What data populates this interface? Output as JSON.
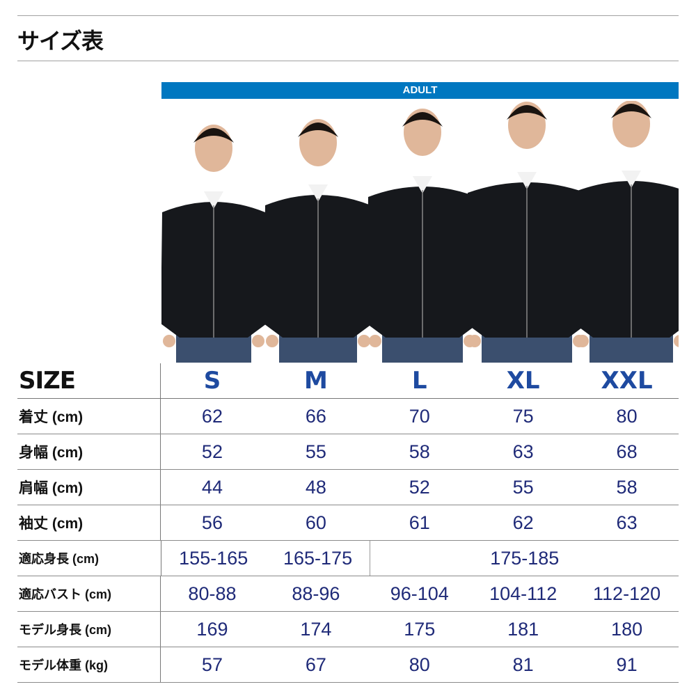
{
  "page_title": "サイズ表",
  "header_band": "ADULT",
  "colors": {
    "band": "#0077c0",
    "size_letters": "#1e4aa0",
    "values": "#1f2a78"
  },
  "size_label": "SIZE",
  "sizes": [
    "S",
    "M",
    "L",
    "XL",
    "XXL"
  ],
  "rows": [
    {
      "label": "着丈 (cm)",
      "values": [
        "62",
        "66",
        "70",
        "75",
        "80"
      ]
    },
    {
      "label": "身幅 (cm)",
      "values": [
        "52",
        "55",
        "58",
        "63",
        "68"
      ]
    },
    {
      "label": "肩幅 (cm)",
      "values": [
        "44",
        "48",
        "52",
        "55",
        "58"
      ]
    },
    {
      "label": "袖丈 (cm)",
      "values": [
        "56",
        "60",
        "61",
        "62",
        "63"
      ]
    },
    {
      "label": "適応身長 (cm)",
      "values": [
        "155-165",
        "165-175",
        "175-185"
      ],
      "merged_last": true
    },
    {
      "label": "適応バスト (cm)",
      "values": [
        "80-88",
        "88-96",
        "96-104",
        "104-112",
        "112-120"
      ]
    },
    {
      "label": "モデル身長 (cm)",
      "values": [
        "169",
        "174",
        "175",
        "181",
        "180"
      ]
    },
    {
      "label": "モデル体重 (kg)",
      "values": [
        "57",
        "67",
        "80",
        "81",
        "91"
      ]
    }
  ]
}
